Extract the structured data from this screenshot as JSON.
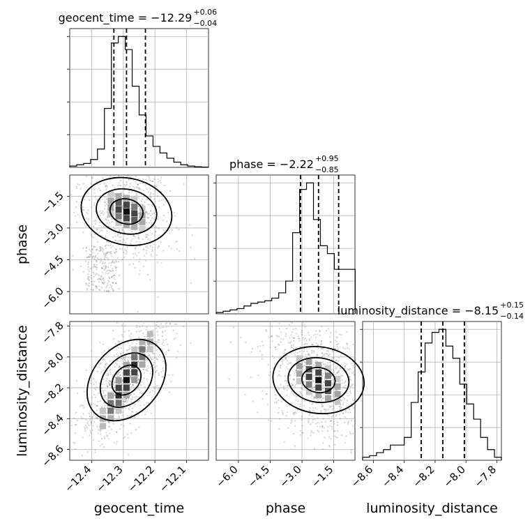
{
  "chart_data": {
    "type": "corner",
    "parameters": [
      "geocent_time",
      "phase",
      "luminosity_distance"
    ],
    "axis_labels": [
      "geocent_time",
      "phase",
      "luminosity_distance"
    ],
    "titles": [
      {
        "text": "geocent_time = −12.29",
        "plus": "+0.06",
        "minus": "−0.04"
      },
      {
        "text": "phase = −2.22",
        "plus": "+0.95",
        "minus": "−0.85"
      },
      {
        "text": "luminosity_distance = −8.15",
        "plus": "+0.15",
        "minus": "−0.14"
      }
    ],
    "ranges": [
      [
        -12.47,
        -12.03
      ],
      [
        -7.05,
        -0.5
      ],
      [
        -8.67,
        -7.77
      ]
    ],
    "ticks": [
      {
        "values": [
          -12.4,
          -12.3,
          -12.2,
          -12.1
        ],
        "labels": [
          "−12.4",
          "−12.3",
          "−12.2",
          "−12.1"
        ]
      },
      {
        "values": [
          -6.0,
          -4.5,
          -3.0,
          -1.5
        ],
        "labels": [
          "−6.0",
          "−4.5",
          "−3.0",
          "−1.5"
        ]
      },
      {
        "values": [
          -8.6,
          -8.4,
          -8.2,
          -8.0,
          -7.8
        ],
        "labels": [
          "−8.6",
          "−8.4",
          "−8.2",
          "−8.0",
          "−7.8"
        ]
      }
    ],
    "quantiles": [
      [
        -12.33,
        -12.29,
        -12.23
      ],
      [
        -3.07,
        -2.22,
        -1.27
      ],
      [
        -8.29,
        -8.15,
        -8.01
      ]
    ],
    "histograms": [
      {
        "edges_start": -12.47,
        "bin_width": 0.022,
        "counts": [
          0.01,
          0.02,
          0.03,
          0.06,
          0.14,
          0.45,
          0.95,
          1.0,
          0.9,
          0.62,
          0.4,
          0.24,
          0.16,
          0.11,
          0.07,
          0.04,
          0.02,
          0.01,
          0.005,
          0.002
        ]
      },
      {
        "edges_start": -7.05,
        "bin_width": 0.328,
        "counts": [
          0.01,
          0.02,
          0.03,
          0.04,
          0.06,
          0.08,
          0.09,
          0.1,
          0.12,
          0.16,
          0.25,
          0.62,
          0.95,
          1.0,
          0.72,
          0.52,
          0.46,
          0.34,
          0.34,
          0.34
        ]
      },
      {
        "edges_start": -8.67,
        "bin_width": 0.045,
        "counts": [
          0.02,
          0.03,
          0.05,
          0.07,
          0.1,
          0.1,
          0.15,
          0.38,
          0.58,
          0.77,
          0.84,
          0.86,
          0.75,
          0.67,
          0.5,
          0.37,
          0.27,
          0.15,
          0.07,
          0.02
        ]
      }
    ],
    "grid": true,
    "legend": "none"
  }
}
